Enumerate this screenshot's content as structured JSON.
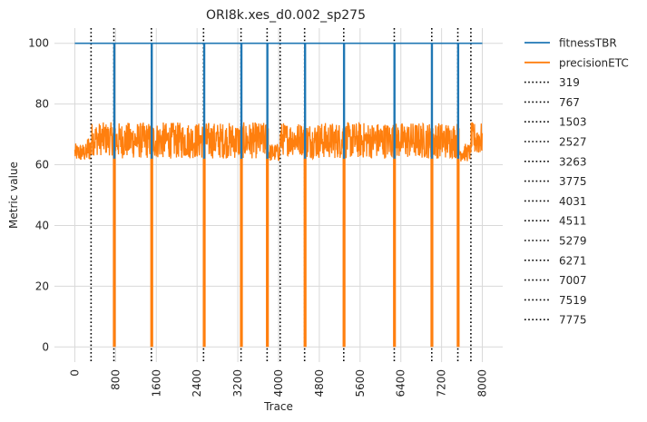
{
  "chart_data": {
    "type": "line",
    "title": "ORI8k.xes_d0.002_sp275",
    "xlabel": "Trace",
    "ylabel": "Metric value",
    "xlim": [
      -400,
      8400
    ],
    "ylim": [
      -5,
      105
    ],
    "xticks": [
      0,
      800,
      1600,
      2400,
      3200,
      4000,
      4800,
      5600,
      6400,
      7200,
      8000
    ],
    "xtick_labels": [
      "0",
      "800",
      "1600",
      "2400",
      "3200",
      "4000",
      "4800",
      "5600",
      "6400",
      "7200",
      "8000"
    ],
    "yticks": [
      0,
      20,
      40,
      60,
      80,
      100
    ],
    "ytick_labels": [
      "0",
      "20",
      "40",
      "60",
      "80",
      "100"
    ],
    "grid": true,
    "legend_position": "outside-right",
    "series": [
      {
        "name": "fitnessTBR",
        "color": "#1f77b4",
        "baseline": 100,
        "dips": [
          {
            "x": 775,
            "y": 0
          },
          {
            "x": 1510,
            "y": 0
          },
          {
            "x": 2540,
            "y": 0
          },
          {
            "x": 3270,
            "y": 0
          },
          {
            "x": 3780,
            "y": 0
          },
          {
            "x": 4520,
            "y": 0
          },
          {
            "x": 5285,
            "y": 0
          },
          {
            "x": 6275,
            "y": 0
          },
          {
            "x": 7010,
            "y": 0
          },
          {
            "x": 7525,
            "y": 0
          }
        ],
        "x_range": [
          0,
          8000
        ]
      },
      {
        "name": "precisionETC",
        "color": "#ff7f0e",
        "x_range": [
          0,
          8000
        ],
        "segments": [
          {
            "x_start": 0,
            "x_end": 250,
            "low": 61,
            "high": 67
          },
          {
            "x_start": 250,
            "x_end": 319,
            "low": 61,
            "high": 70
          },
          {
            "x_start": 319,
            "x_end": 767,
            "low": 63,
            "high": 74
          },
          {
            "x_start": 767,
            "x_end": 1503,
            "low": 62,
            "high": 74
          },
          {
            "x_start": 1503,
            "x_end": 2527,
            "low": 62,
            "high": 74
          },
          {
            "x_start": 2527,
            "x_end": 3263,
            "low": 62,
            "high": 74
          },
          {
            "x_start": 3263,
            "x_end": 3775,
            "low": 62,
            "high": 74
          },
          {
            "x_start": 3775,
            "x_end": 4031,
            "low": 61,
            "high": 67
          },
          {
            "x_start": 4031,
            "x_end": 4511,
            "low": 63,
            "high": 74
          },
          {
            "x_start": 4511,
            "x_end": 5279,
            "low": 62,
            "high": 74
          },
          {
            "x_start": 5279,
            "x_end": 6271,
            "low": 62,
            "high": 74
          },
          {
            "x_start": 6271,
            "x_end": 7007,
            "low": 62,
            "high": 74
          },
          {
            "x_start": 7007,
            "x_end": 7519,
            "low": 62,
            "high": 74
          },
          {
            "x_start": 7519,
            "x_end": 7775,
            "low": 61,
            "high": 67
          },
          {
            "x_start": 7775,
            "x_end": 8000,
            "low": 63,
            "high": 74
          }
        ],
        "dips": [
          {
            "x": 775,
            "y": 0
          },
          {
            "x": 1510,
            "y": 0
          },
          {
            "x": 2540,
            "y": 0
          },
          {
            "x": 3270,
            "y": 0
          },
          {
            "x": 3780,
            "y": 0
          },
          {
            "x": 4520,
            "y": 0
          },
          {
            "x": 5285,
            "y": 0
          },
          {
            "x": 6275,
            "y": 0
          },
          {
            "x": 7010,
            "y": 0
          },
          {
            "x": 7525,
            "y": 0
          }
        ]
      }
    ],
    "vlines": [
      {
        "name": "319",
        "x": 319
      },
      {
        "name": "767",
        "x": 767
      },
      {
        "name": "1503",
        "x": 1503
      },
      {
        "name": "2527",
        "x": 2527
      },
      {
        "name": "3263",
        "x": 3263
      },
      {
        "name": "3775",
        "x": 3775
      },
      {
        "name": "4031",
        "x": 4031
      },
      {
        "name": "4511",
        "x": 4511
      },
      {
        "name": "5279",
        "x": 5279
      },
      {
        "name": "6271",
        "x": 6271
      },
      {
        "name": "7007",
        "x": 7007
      },
      {
        "name": "7519",
        "x": 7519
      },
      {
        "name": "7775",
        "x": 7775
      }
    ],
    "vline_color": "#000000"
  }
}
